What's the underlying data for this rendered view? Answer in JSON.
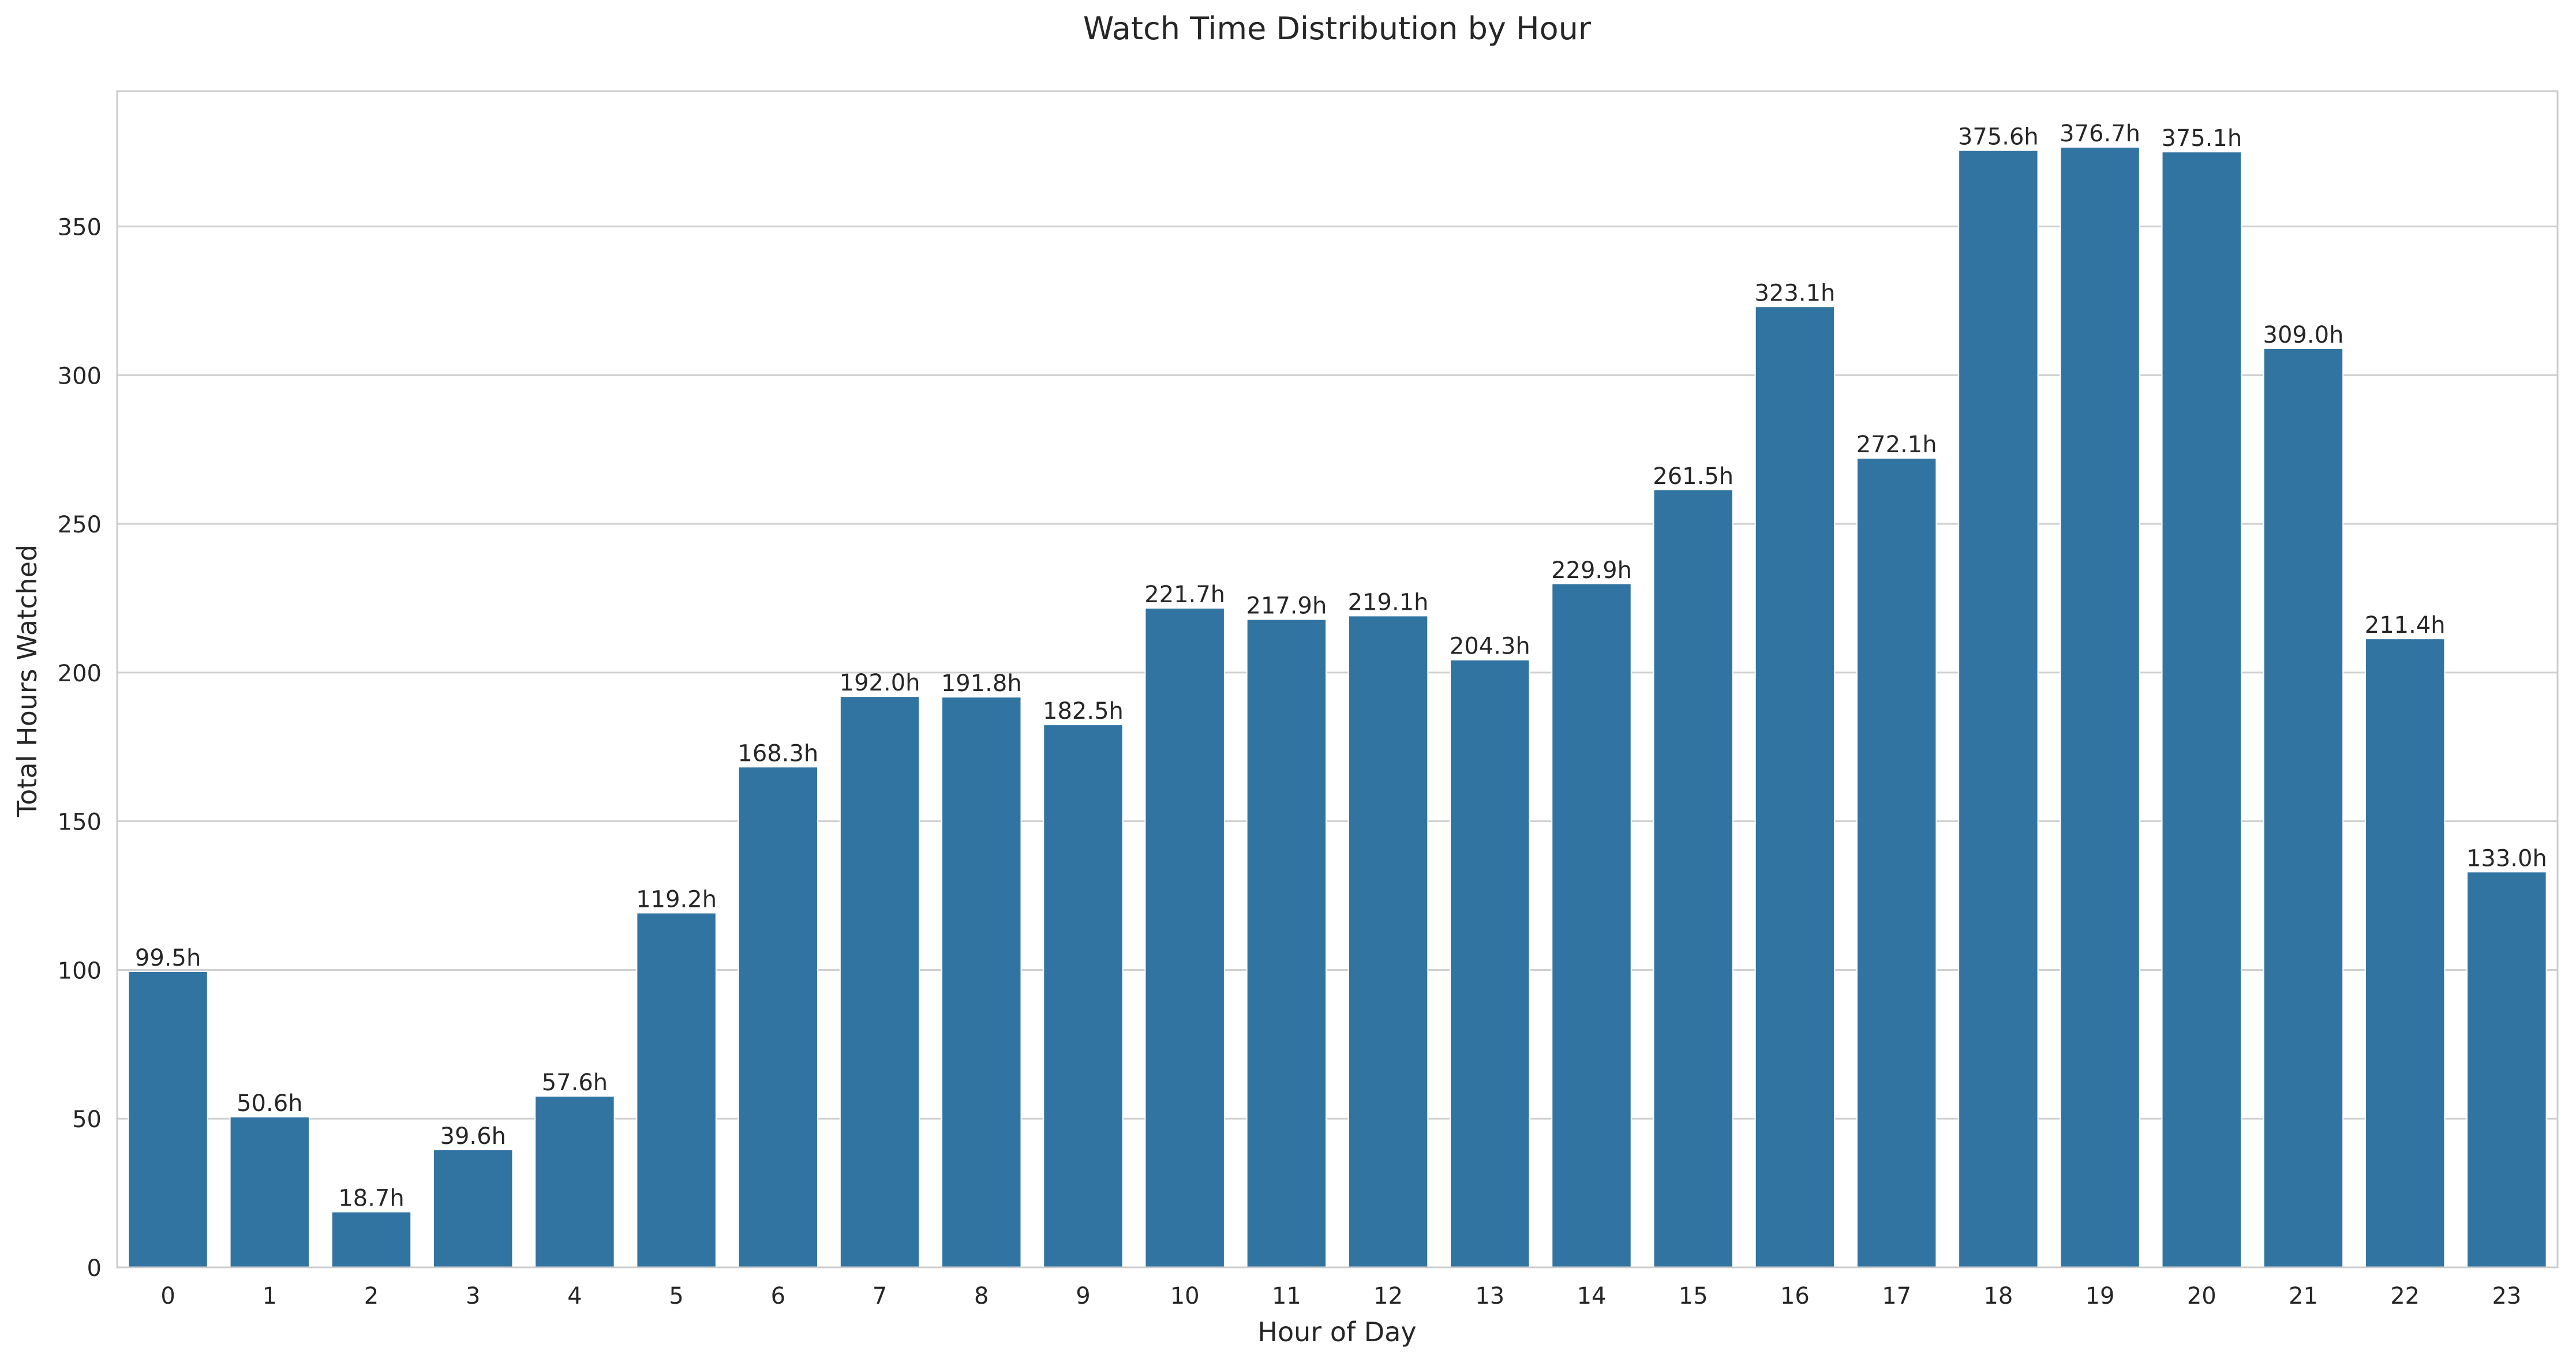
{
  "chart_data": {
    "type": "bar",
    "title": "Watch Time Distribution by Hour",
    "xlabel": "Hour of Day",
    "ylabel": "Total Hours Watched",
    "categories": [
      "0",
      "1",
      "2",
      "3",
      "4",
      "5",
      "6",
      "7",
      "8",
      "9",
      "10",
      "11",
      "12",
      "13",
      "14",
      "15",
      "16",
      "17",
      "18",
      "19",
      "20",
      "21",
      "22",
      "23"
    ],
    "values": [
      99.5,
      50.6,
      18.7,
      39.6,
      57.6,
      119.2,
      168.3,
      192.0,
      191.8,
      182.5,
      221.7,
      217.9,
      219.1,
      204.3,
      229.9,
      261.5,
      323.1,
      272.1,
      375.6,
      376.7,
      375.1,
      309.0,
      211.4,
      133.0
    ],
    "data_labels": [
      "99.5h",
      "50.6h",
      "18.7h",
      "39.6h",
      "57.6h",
      "119.2h",
      "168.3h",
      "192.0h",
      "191.8h",
      "182.5h",
      "221.7h",
      "217.9h",
      "219.1h",
      "204.3h",
      "229.9h",
      "261.5h",
      "323.1h",
      "272.1h",
      "375.6h",
      "376.7h",
      "375.1h",
      "309.0h",
      "211.4h",
      "133.0h"
    ],
    "yticks": [
      0,
      50,
      100,
      150,
      200,
      250,
      300,
      350
    ],
    "ylim": [
      0,
      395.5
    ],
    "grid": true,
    "bar_color": "#3274a1",
    "grid_color": "#d0d0d0",
    "spine_color": "#cccccc"
  }
}
